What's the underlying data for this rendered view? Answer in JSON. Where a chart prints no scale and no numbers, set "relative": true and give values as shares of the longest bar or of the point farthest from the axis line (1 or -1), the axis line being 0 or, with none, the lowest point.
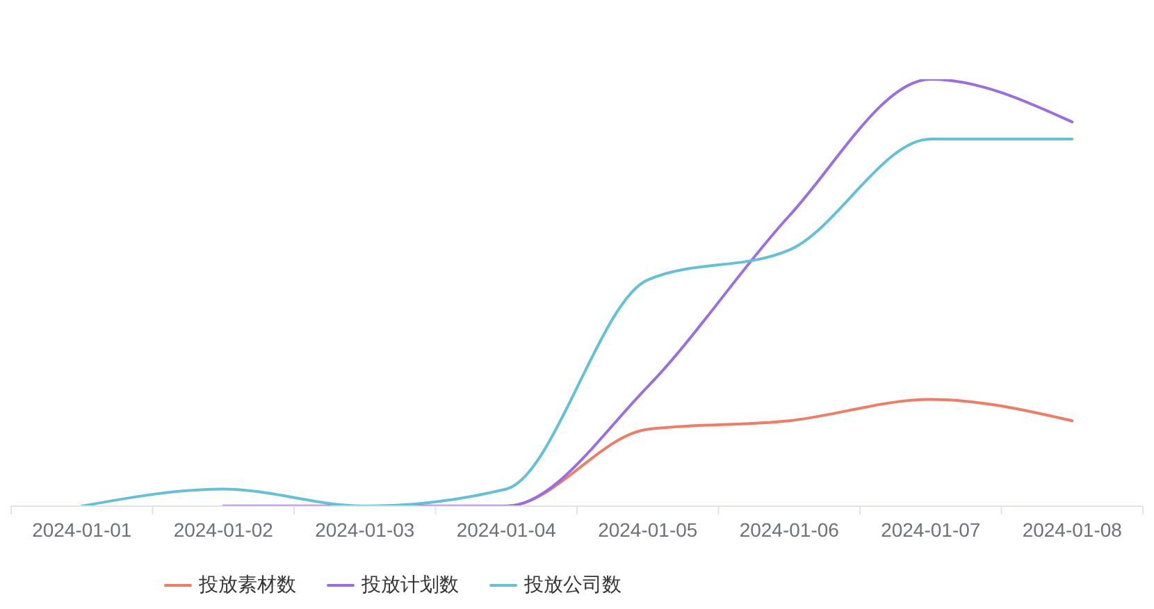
{
  "chart_data": {
    "type": "line",
    "relative": true,
    "legend": "bottom",
    "marker": "none",
    "line_style": "solid",
    "categories": [
      "2024-01-01",
      "2024-01-02",
      "2024-01-03",
      "2024-01-04",
      "2024-01-05",
      "2024-01-06",
      "2024-01-07",
      "2024-01-08"
    ],
    "series": [
      {
        "name": "投放素材数",
        "color": "#f27b63",
        "values": [
          null,
          null,
          0,
          0,
          0.18,
          0.2,
          0.25,
          0.2
        ]
      },
      {
        "name": "投放计划数",
        "color": "#9a6ee0",
        "values": [
          null,
          0,
          0,
          0,
          0.28,
          0.68,
          1,
          0.9
        ]
      },
      {
        "name": "投放公司数",
        "color": "#63c1d6",
        "values": [
          0,
          0.04,
          0,
          0.04,
          0.53,
          0.6,
          0.86,
          0.86
        ]
      }
    ]
  }
}
